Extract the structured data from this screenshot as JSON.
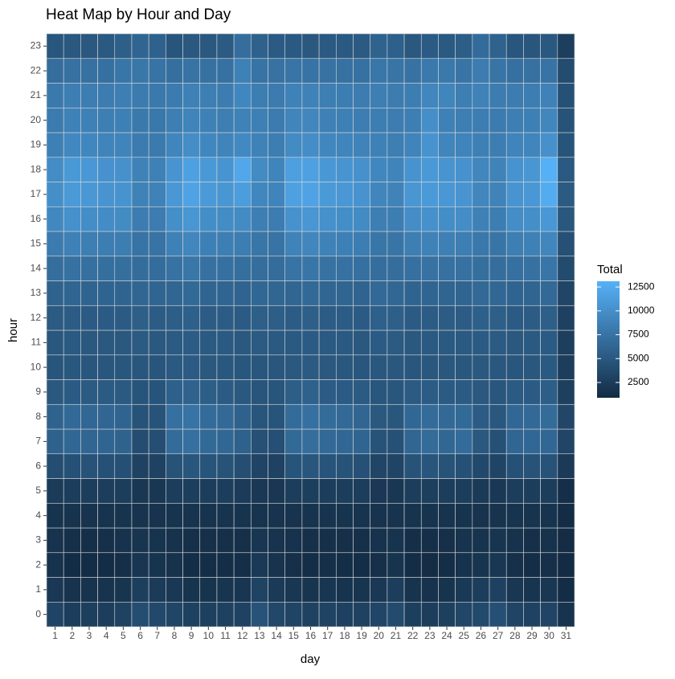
{
  "chart_data": {
    "type": "heatmap",
    "title": "Heat Map by Hour and Day",
    "x_label": "day",
    "y_label": "hour",
    "legend_title": "Total",
    "x": [
      1,
      2,
      3,
      4,
      5,
      6,
      7,
      8,
      9,
      10,
      11,
      12,
      13,
      14,
      15,
      16,
      17,
      18,
      19,
      20,
      21,
      22,
      23,
      24,
      25,
      26,
      27,
      28,
      29,
      30,
      31
    ],
    "y": [
      0,
      1,
      2,
      3,
      4,
      5,
      6,
      7,
      8,
      9,
      10,
      11,
      12,
      13,
      14,
      15,
      16,
      17,
      18,
      19,
      20,
      21,
      22,
      23
    ],
    "low_color": "#132B43",
    "high_color": "#56B1F7",
    "colorlim": [
      900,
      13100
    ],
    "colorticks": [
      2500,
      5000,
      7500,
      10000,
      12500
    ],
    "values": [
      [
        3200,
        2600,
        2700,
        2600,
        3000,
        4000,
        3600,
        3300,
        2900,
        2800,
        2900,
        3000,
        4500,
        3500,
        3200,
        3000,
        3100,
        2900,
        3000,
        3300,
        3800,
        2700,
        2600,
        2800,
        3400,
        3700,
        4200,
        3200,
        3000,
        3200,
        1700
      ],
      [
        2100,
        1600,
        1600,
        1600,
        1800,
        2700,
        2400,
        2100,
        1700,
        1700,
        1800,
        1900,
        3100,
        2300,
        2000,
        1800,
        1900,
        1700,
        1800,
        2100,
        2500,
        1600,
        1500,
        1700,
        2200,
        2500,
        2900,
        2000,
        1800,
        2000,
        1100
      ],
      [
        1500,
        1100,
        1100,
        1100,
        1300,
        1900,
        1700,
        1500,
        1200,
        1200,
        1200,
        1300,
        2200,
        1600,
        1400,
        1200,
        1300,
        1200,
        1200,
        1400,
        1700,
        1100,
        1000,
        1200,
        1500,
        1800,
        2000,
        1400,
        1200,
        1400,
        900
      ],
      [
        1600,
        1400,
        1300,
        1400,
        1500,
        1800,
        1700,
        1500,
        1400,
        1400,
        1400,
        1400,
        1900,
        1600,
        1500,
        1400,
        1400,
        1400,
        1400,
        1500,
        1700,
        1300,
        1300,
        1400,
        1600,
        1700,
        1800,
        1500,
        1400,
        1500,
        1000
      ],
      [
        1700,
        1600,
        1600,
        1700,
        1700,
        1600,
        1600,
        1700,
        1700,
        1700,
        1700,
        1700,
        1700,
        1600,
        1600,
        1700,
        1700,
        1700,
        1700,
        1600,
        1600,
        1700,
        1700,
        1700,
        1700,
        1600,
        1600,
        1700,
        1700,
        1700,
        1000
      ],
      [
        2400,
        2600,
        2600,
        2600,
        2500,
        2000,
        2000,
        2600,
        2700,
        2600,
        2600,
        2400,
        2100,
        2000,
        2600,
        2700,
        2600,
        2600,
        2500,
        2100,
        2000,
        2600,
        2700,
        2600,
        2600,
        2300,
        2100,
        2600,
        2600,
        2600,
        1300
      ],
      [
        4000,
        4400,
        4500,
        4400,
        4200,
        3000,
        3000,
        4500,
        4800,
        4600,
        4500,
        4100,
        3200,
        3000,
        4600,
        4800,
        4600,
        4500,
        4300,
        3300,
        3200,
        4500,
        4700,
        4500,
        4400,
        3600,
        3200,
        4400,
        4500,
        4500,
        2300
      ],
      [
        5900,
        6400,
        6300,
        6200,
        6000,
        4000,
        4100,
        6800,
        7200,
        6600,
        6400,
        5800,
        4300,
        4200,
        6600,
        7000,
        6500,
        6400,
        6200,
        4500,
        4400,
        6300,
        6700,
        6400,
        6800,
        5000,
        4400,
        6300,
        6400,
        6400,
        3300
      ],
      [
        6000,
        6500,
        6400,
        6300,
        6100,
        4500,
        4500,
        7200,
        7500,
        6800,
        6500,
        5900,
        4700,
        4600,
        6800,
        7200,
        6700,
        6500,
        6300,
        5000,
        4800,
        6400,
        6800,
        6500,
        6600,
        5400,
        4900,
        6400,
        6500,
        6700,
        3400
      ],
      [
        5000,
        5300,
        5200,
        5200,
        5100,
        4600,
        4600,
        5700,
        6000,
        5500,
        5300,
        5000,
        4700,
        4700,
        5500,
        5800,
        5400,
        5300,
        5200,
        4800,
        4800,
        5200,
        5400,
        5300,
        5300,
        5000,
        4800,
        5200,
        5300,
        5500,
        2800
      ],
      [
        4700,
        4900,
        4800,
        4800,
        4800,
        4800,
        4700,
        5100,
        5300,
        5000,
        4900,
        4800,
        4800,
        4800,
        5000,
        5200,
        5000,
        4900,
        4800,
        4900,
        4900,
        4800,
        4900,
        4900,
        4900,
        5000,
        4900,
        4800,
        4900,
        5100,
        2600
      ],
      [
        4900,
        5100,
        5000,
        5000,
        5000,
        5200,
        5000,
        5200,
        5400,
        5100,
        5100,
        5000,
        5200,
        5100,
        5100,
        5300,
        5100,
        5100,
        5000,
        5300,
        5200,
        5000,
        5100,
        5100,
        5100,
        5300,
        5200,
        5000,
        5100,
        5300,
        2700
      ],
      [
        5200,
        5400,
        5300,
        5300,
        5300,
        5600,
        5400,
        5500,
        5700,
        5400,
        5400,
        5300,
        5600,
        5500,
        5400,
        5600,
        5400,
        5400,
        5300,
        5700,
        5600,
        5300,
        5400,
        5400,
        5400,
        5700,
        5600,
        5300,
        5400,
        5600,
        2900
      ],
      [
        6000,
        6200,
        6100,
        6100,
        6100,
        6300,
        6200,
        6300,
        6600,
        6200,
        6200,
        6100,
        6400,
        6300,
        6300,
        6500,
        6300,
        6200,
        6100,
        6500,
        6400,
        6100,
        6200,
        6200,
        6200,
        6500,
        6400,
        6100,
        6200,
        6500,
        3300
      ],
      [
        7000,
        7300,
        7200,
        7100,
        7100,
        6900,
        6900,
        7400,
        7800,
        7300,
        7200,
        7100,
        7000,
        6900,
        7500,
        7700,
        7400,
        7300,
        7200,
        7000,
        7000,
        7200,
        7400,
        7300,
        7300,
        7100,
        7000,
        7200,
        7300,
        7700,
        3800
      ],
      [
        8200,
        8700,
        8500,
        8400,
        8400,
        7500,
        7500,
        8700,
        9200,
        8600,
        8500,
        8400,
        7700,
        7500,
        8900,
        9200,
        8800,
        8600,
        8400,
        7700,
        7600,
        8500,
        8800,
        8600,
        8500,
        7900,
        7600,
        8500,
        8700,
        9200,
        4300
      ],
      [
        9400,
        10100,
        9900,
        9700,
        9600,
        8300,
        8300,
        10000,
        10600,
        9900,
        9700,
        9600,
        8500,
        8300,
        10300,
        10600,
        10100,
        9900,
        9600,
        8500,
        8400,
        9800,
        10100,
        9900,
        9800,
        8700,
        8400,
        9800,
        10000,
        10700,
        4900
      ],
      [
        10000,
        11000,
        10800,
        10500,
        10400,
        8800,
        8800,
        10800,
        11800,
        11000,
        10600,
        11300,
        9300,
        9000,
        11600,
        11800,
        11000,
        10700,
        10400,
        9100,
        8900,
        10600,
        11000,
        10700,
        10500,
        9200,
        8900,
        10500,
        10700,
        12600,
        5200
      ],
      [
        9700,
        10900,
        10800,
        10300,
        10200,
        8800,
        8700,
        10500,
        11600,
        10900,
        10500,
        12200,
        9600,
        9000,
        11500,
        11600,
        10800,
        10500,
        10200,
        9300,
        9000,
        10400,
        10900,
        10500,
        10300,
        9200,
        8900,
        10400,
        10600,
        13000,
        5100
      ],
      [
        8600,
        9400,
        9300,
        9000,
        9000,
        8200,
        8100,
        9100,
        9800,
        9300,
        9000,
        9500,
        8800,
        8400,
        9600,
        9800,
        9300,
        9100,
        8900,
        8700,
        8500,
        9000,
        10400,
        9100,
        9000,
        8600,
        8400,
        9000,
        9100,
        10200,
        4600
      ],
      [
        8200,
        8800,
        8700,
        8500,
        8600,
        8000,
        7900,
        8500,
        9000,
        8700,
        8500,
        8800,
        8600,
        8200,
        9100,
        9200,
        8700,
        8600,
        8400,
        8400,
        8300,
        8500,
        10000,
        8700,
        8500,
        8400,
        8200,
        8500,
        8600,
        9200,
        4500
      ],
      [
        8000,
        8500,
        8400,
        8300,
        8500,
        8200,
        8000,
        8200,
        8700,
        8500,
        8300,
        9300,
        8400,
        8200,
        8800,
        8800,
        8500,
        8400,
        8300,
        8500,
        8300,
        8400,
        9200,
        9100,
        8500,
        8800,
        8300,
        8300,
        8400,
        8800,
        4400
      ],
      [
        7000,
        7300,
        7300,
        7200,
        7700,
        7800,
        7500,
        7100,
        7500,
        7300,
        7300,
        8700,
        7500,
        7400,
        7600,
        7500,
        7400,
        7300,
        7300,
        7800,
        7600,
        7400,
        8000,
        8000,
        7600,
        8300,
        7600,
        7200,
        7300,
        7500,
        3900
      ],
      [
        4800,
        5000,
        5000,
        5100,
        5600,
        6200,
        5900,
        4700,
        5000,
        5000,
        5200,
        7000,
        5900,
        5300,
        5100,
        5000,
        5100,
        5100,
        5200,
        6000,
        5700,
        5000,
        5300,
        5100,
        5500,
        6800,
        6000,
        4800,
        4800,
        5000,
        2700
      ]
    ]
  }
}
